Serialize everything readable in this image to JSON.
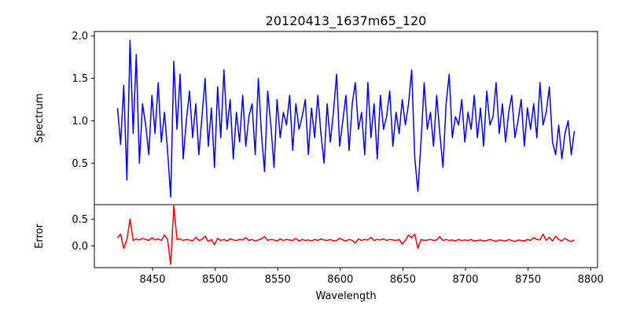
{
  "chart_data": {
    "type": "line",
    "title": "20120413_1637m65_120",
    "xlabel": "Wavelength",
    "xlim": [
      8403.5,
      8805.5
    ],
    "xticks": [
      8450,
      8500,
      8550,
      8600,
      8650,
      8700,
      8750,
      8800
    ],
    "x_start": 8422,
    "x_step": 2.5,
    "panels": [
      {
        "name": "spectrum",
        "ylabel": "Spectrum",
        "ylim": [
          0.011,
          2.053
        ],
        "yticks": [
          0.5,
          1.0,
          1.5,
          2.0
        ],
        "ytick_labels": [
          "0.5",
          "1.0",
          "1.5",
          "2.0"
        ],
        "color": "#0000ff",
        "values": [
          1.15,
          0.72,
          1.42,
          0.3,
          1.95,
          0.85,
          1.78,
          0.5,
          1.2,
          0.95,
          0.6,
          1.3,
          0.85,
          1.45,
          0.75,
          1.1,
          0.65,
          0.1,
          1.7,
          0.9,
          1.55,
          0.55,
          1.0,
          1.35,
          0.8,
          1.2,
          0.6,
          1.05,
          1.5,
          0.7,
          1.15,
          0.45,
          1.4,
          0.8,
          1.6,
          0.9,
          1.25,
          0.55,
          1.1,
          0.75,
          1.3,
          0.7,
          1.05,
          1.2,
          0.6,
          1.5,
          0.85,
          0.4,
          1.35,
          0.95,
          0.45,
          1.25,
          0.8,
          1.1,
          0.95,
          1.3,
          0.65,
          1.2,
          0.9,
          1.05,
          1.25,
          0.6,
          1.15,
          0.8,
          1.3,
          0.85,
          0.5,
          1.2,
          0.75,
          1.1,
          1.55,
          0.7,
          1.0,
          1.3,
          0.65,
          1.2,
          1.45,
          0.9,
          1.1,
          0.6,
          1.45,
          0.8,
          1.2,
          0.55,
          1.3,
          0.9,
          1.05,
          1.35,
          0.7,
          1.1,
          0.85,
          1.25,
          0.95,
          1.2,
          1.6,
          0.55,
          0.17,
          0.75,
          1.45,
          0.9,
          1.1,
          0.7,
          1.3,
          0.85,
          0.45,
          1.2,
          1.55,
          0.8,
          1.05,
          0.95,
          1.25,
          0.75,
          1.1,
          0.9,
          1.3,
          0.8,
          1.15,
          0.7,
          1.35,
          0.95,
          1.05,
          1.45,
          0.85,
          1.2,
          0.75,
          1.1,
          1.3,
          0.8,
          1.0,
          1.25,
          0.7,
          1.15,
          0.9,
          1.2,
          0.8,
          1.45,
          0.95,
          1.1,
          1.4,
          0.75,
          0.6,
          0.95,
          0.55,
          0.85,
          1.0,
          0.6,
          0.88
        ]
      },
      {
        "name": "error",
        "ylabel": "Error",
        "ylim": [
          -0.407,
          0.77
        ],
        "yticks": [
          0.0,
          0.5
        ],
        "ytick_labels": [
          "0.0",
          "0.5"
        ],
        "color": "#ff0000",
        "values": [
          0.15,
          0.22,
          -0.05,
          0.12,
          0.5,
          0.1,
          0.13,
          0.11,
          0.14,
          0.12,
          0.1,
          0.15,
          0.11,
          0.13,
          0.1,
          0.2,
          0.12,
          -0.35,
          0.75,
          0.12,
          0.13,
          0.1,
          0.12,
          0.11,
          0.09,
          0.16,
          0.1,
          0.12,
          0.18,
          0.08,
          0.12,
          0.02,
          0.14,
          0.1,
          0.12,
          0.09,
          0.13,
          0.11,
          0.1,
          0.12,
          0.11,
          0.15,
          0.1,
          0.12,
          0.09,
          0.11,
          0.13,
          0.17,
          0.1,
          0.12,
          0.11,
          0.09,
          0.13,
          0.1,
          0.12,
          0.11,
          0.1,
          0.14,
          0.09,
          0.12,
          0.1,
          0.11,
          0.09,
          0.12,
          0.1,
          0.13,
          0.11,
          0.1,
          0.12,
          0.09,
          0.1,
          0.14,
          0.11,
          0.09,
          0.12,
          0.1,
          0.05,
          0.13,
          0.1,
          0.12,
          0.11,
          0.16,
          0.1,
          0.12,
          0.11,
          0.13,
          0.1,
          0.12,
          0.11,
          0.1,
          0.12,
          0.03,
          0.1,
          0.2,
          0.15,
          0.22,
          -0.05,
          0.12,
          0.1,
          0.11,
          0.12,
          0.1,
          0.11,
          0.17,
          0.1,
          0.12,
          0.1,
          0.11,
          0.09,
          0.12,
          0.1,
          0.11,
          0.1,
          0.12,
          0.09,
          0.1,
          0.11,
          0.09,
          0.1,
          0.12,
          0.1,
          0.08,
          0.11,
          0.1,
          0.09,
          0.12,
          0.1,
          0.08,
          0.11,
          0.1,
          0.09,
          0.12,
          0.1,
          0.15,
          0.12,
          0.11,
          0.22,
          0.1,
          0.16,
          0.09,
          0.18,
          0.12,
          0.09,
          0.14,
          0.1,
          0.08,
          0.11
        ]
      }
    ]
  }
}
